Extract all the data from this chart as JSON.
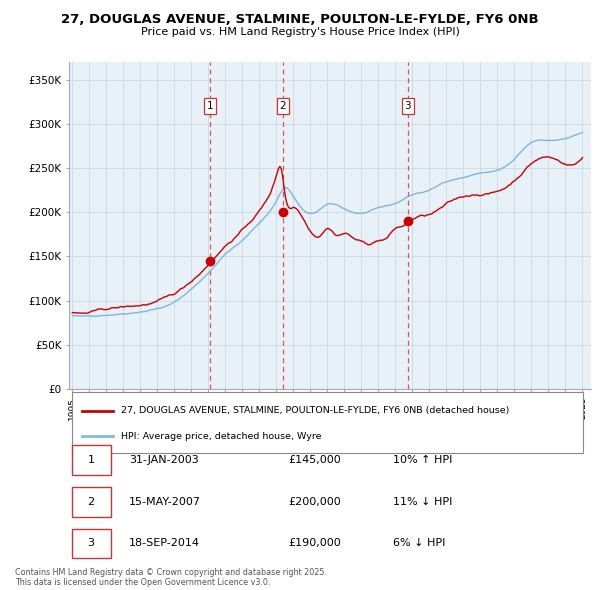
{
  "title": "27, DOUGLAS AVENUE, STALMINE, POULTON-LE-FYLDE, FY6 0NB",
  "subtitle": "Price paid vs. HM Land Registry's House Price Index (HPI)",
  "ylim": [
    0,
    370000
  ],
  "yticks": [
    0,
    50000,
    100000,
    150000,
    200000,
    250000,
    300000,
    350000
  ],
  "ytick_labels": [
    "£0",
    "£50K",
    "£100K",
    "£150K",
    "£200K",
    "£250K",
    "£300K",
    "£350K"
  ],
  "hpi_color": "#6baed6",
  "price_color": "#cc0000",
  "chart_bg": "#e8f0f8",
  "transaction_dates": [
    2003.08,
    2007.37,
    2014.72
  ],
  "transaction_prices": [
    145000,
    200000,
    190000
  ],
  "transaction_labels": [
    "1",
    "2",
    "3"
  ],
  "legend_line1": "27, DOUGLAS AVENUE, STALMINE, POULTON-LE-FYLDE, FY6 0NB (detached house)",
  "legend_line2": "HPI: Average price, detached house, Wyre",
  "table_data": [
    [
      "1",
      "31-JAN-2003",
      "£145,000",
      "10% ↑ HPI"
    ],
    [
      "2",
      "15-MAY-2007",
      "£200,000",
      "11% ↓ HPI"
    ],
    [
      "3",
      "18-SEP-2014",
      "£190,000",
      "6% ↓ HPI"
    ]
  ],
  "footer": "Contains HM Land Registry data © Crown copyright and database right 2025.\nThis data is licensed under the Open Government Licence v3.0.",
  "background_color": "#ffffff",
  "grid_color": "#c8d4e0"
}
